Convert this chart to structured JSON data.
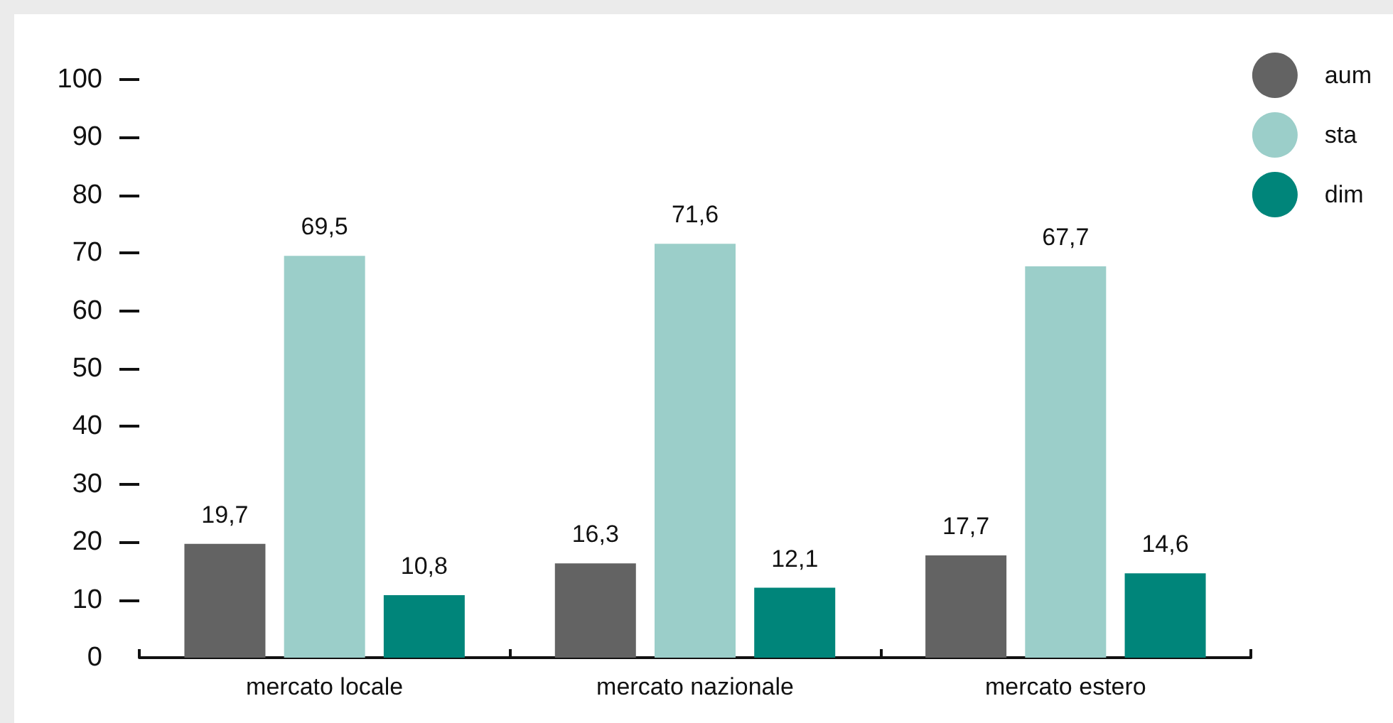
{
  "chart_data": {
    "type": "bar",
    "categories": [
      "mercato locale",
      "mercato nazionale",
      "mercato estero"
    ],
    "series": [
      {
        "name": "aum",
        "color": "#636363",
        "values": [
          19.7,
          16.3,
          17.7
        ],
        "value_labels": [
          "19,7",
          "16,3",
          "17,7"
        ]
      },
      {
        "name": "sta",
        "color": "#9bcec9",
        "values": [
          69.5,
          71.6,
          67.7
        ],
        "value_labels": [
          "69,5",
          "71,6",
          "67,7"
        ]
      },
      {
        "name": "dim",
        "color": "#00857a",
        "values": [
          10.8,
          12.1,
          14.6
        ],
        "value_labels": [
          "10,8",
          "12,1",
          "14,6"
        ]
      }
    ],
    "ylim": [
      0,
      100
    ],
    "yticks": [
      0,
      10,
      20,
      30,
      40,
      50,
      60,
      70,
      80,
      90,
      100
    ],
    "grid": false,
    "legend": "top right"
  }
}
